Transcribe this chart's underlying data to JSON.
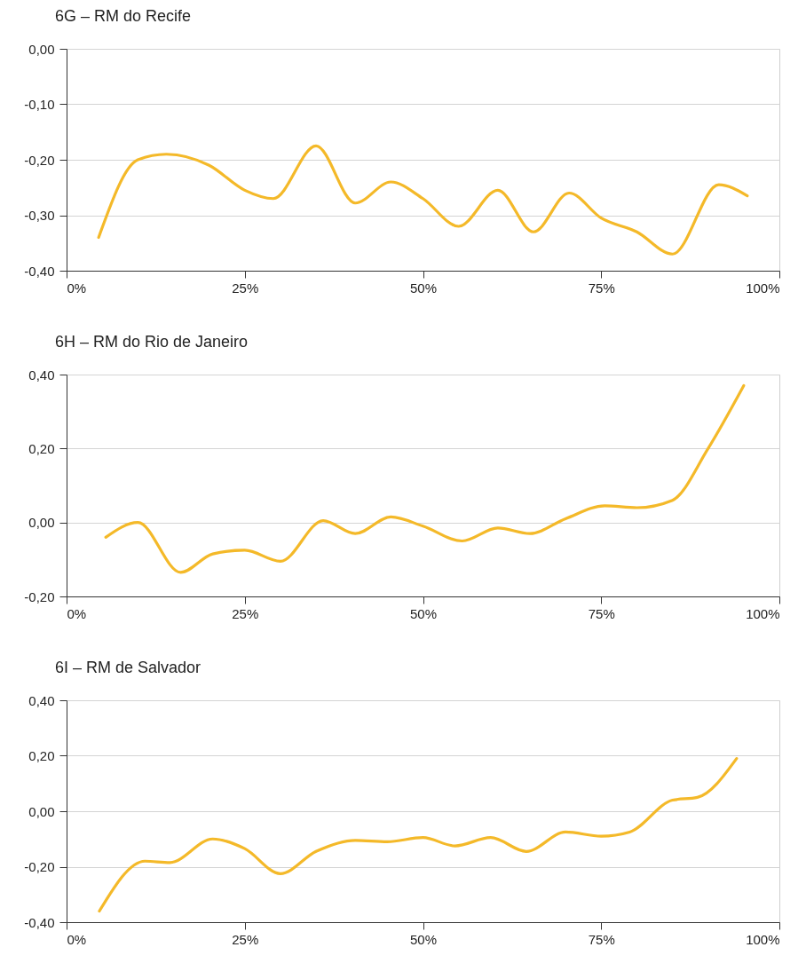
{
  "chart_data": [
    {
      "type": "line",
      "title": "6G – RM do Recife",
      "x": [
        4.5,
        10,
        14,
        20,
        25,
        29,
        35,
        40.5,
        45.5,
        50,
        55,
        60.5,
        65.5,
        70.5,
        75,
        80,
        85,
        91.5,
        95.5
      ],
      "series": [
        {
          "color": "#f4b929",
          "values": [
            -0.34,
            -0.2,
            -0.19,
            -0.21,
            -0.255,
            -0.27,
            -0.175,
            -0.278,
            -0.24,
            -0.27,
            -0.32,
            -0.255,
            -0.33,
            -0.26,
            -0.305,
            -0.33,
            -0.37,
            -0.245,
            -0.265
          ]
        }
      ],
      "xlim": [
        0,
        100
      ],
      "xticks": [
        {
          "value": 0,
          "label": "0%"
        },
        {
          "value": 25,
          "label": "25%"
        },
        {
          "value": 50,
          "label": "50%"
        },
        {
          "value": 75,
          "label": "75%"
        },
        {
          "value": 100,
          "label": "100%"
        }
      ],
      "ylim": [
        -0.4,
        0
      ],
      "yticks": [
        {
          "value": -0.4,
          "label": "-0,40"
        },
        {
          "value": -0.3,
          "label": "-0,30"
        },
        {
          "value": -0.2,
          "label": "-0,20"
        },
        {
          "value": -0.1,
          "label": "-0,10"
        },
        {
          "value": 0,
          "label": "0,00"
        }
      ],
      "grid": "y"
    },
    {
      "type": "line",
      "title": "6H – RM do Rio de Janeiro",
      "x": [
        5.5,
        10,
        16,
        20.5,
        25,
        30,
        36,
        40.5,
        45.5,
        50,
        55.5,
        60.5,
        65,
        70,
        75.5,
        80,
        85,
        90,
        95
      ],
      "series": [
        {
          "color": "#f4b929",
          "values": [
            -0.04,
            0,
            -0.135,
            -0.085,
            -0.075,
            -0.105,
            0.005,
            -0.03,
            0.015,
            -0.01,
            -0.05,
            -0.015,
            -0.03,
            0.01,
            0.045,
            0.04,
            0.06,
            0.2,
            0.37
          ]
        }
      ],
      "xlim": [
        0,
        100
      ],
      "xticks": [
        {
          "value": 0,
          "label": "0%"
        },
        {
          "value": 25,
          "label": "25%"
        },
        {
          "value": 50,
          "label": "50%"
        },
        {
          "value": 75,
          "label": "75%"
        },
        {
          "value": 100,
          "label": "100%"
        }
      ],
      "ylim": [
        -0.2,
        0.4
      ],
      "yticks": [
        {
          "value": -0.2,
          "label": "-0,20"
        },
        {
          "value": 0,
          "label": "0,00"
        },
        {
          "value": 0.2,
          "label": "0,20"
        },
        {
          "value": 0.4,
          "label": "0,40"
        }
      ],
      "grid": "y"
    },
    {
      "type": "line",
      "title": "6I – RM de Salvador",
      "x": [
        4.6,
        11,
        14.5,
        20.5,
        25,
        30,
        35,
        40.5,
        45,
        50,
        54.5,
        59.5,
        64.5,
        70,
        75,
        79,
        85,
        88.5,
        94
      ],
      "series": [
        {
          "color": "#f4b929",
          "values": [
            -0.36,
            -0.18,
            -0.185,
            -0.1,
            -0.135,
            -0.225,
            -0.145,
            -0.105,
            -0.11,
            -0.095,
            -0.125,
            -0.095,
            -0.145,
            -0.075,
            -0.09,
            -0.075,
            0.04,
            0.05,
            0.19
          ]
        }
      ],
      "xlim": [
        0,
        100
      ],
      "xticks": [
        {
          "value": 0,
          "label": "0%"
        },
        {
          "value": 25,
          "label": "25%"
        },
        {
          "value": 50,
          "label": "50%"
        },
        {
          "value": 75,
          "label": "75%"
        },
        {
          "value": 100,
          "label": "100%"
        }
      ],
      "ylim": [
        -0.4,
        0.4
      ],
      "yticks": [
        {
          "value": -0.4,
          "label": "-0,40"
        },
        {
          "value": -0.2,
          "label": "-0,20"
        },
        {
          "value": 0,
          "label": "0,00"
        },
        {
          "value": 0.2,
          "label": "0,20"
        },
        {
          "value": 0.4,
          "label": "0,40"
        }
      ],
      "grid": "y"
    }
  ]
}
